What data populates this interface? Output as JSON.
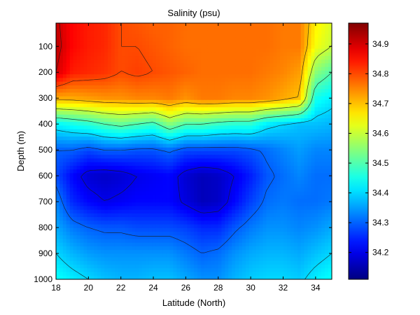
{
  "chart_data": {
    "type": "heatmap",
    "title": "Salinity (psu)",
    "xlabel": "Latitude (North)",
    "ylabel": "Depth (m)",
    "xlim": [
      18,
      35
    ],
    "ylim": [
      0,
      1000
    ],
    "x_ticks": [
      18,
      20,
      22,
      24,
      26,
      28,
      30,
      32,
      34
    ],
    "y_ticks": [
      100,
      200,
      300,
      400,
      500,
      600,
      700,
      800,
      900,
      1000
    ],
    "y_reversed": true,
    "colorbar": {
      "range": [
        34.11,
        34.97
      ],
      "ticks": [
        34.2,
        34.3,
        34.4,
        34.5,
        34.6,
        34.7,
        34.8,
        34.9
      ],
      "colormap": "jet"
    },
    "grid": false,
    "legend": "none",
    "contour_levels": [
      34.2,
      34.3,
      34.4,
      34.5,
      34.6,
      34.7,
      34.8,
      34.9
    ],
    "latitudes": [
      18,
      19,
      20,
      21,
      22,
      23,
      24,
      25,
      26,
      27,
      28,
      29,
      30,
      31,
      32,
      33,
      34,
      35
    ],
    "depths": [
      0,
      100,
      200,
      300,
      400,
      500,
      600,
      700,
      800,
      900,
      1000
    ],
    "values": [
      [
        34.91,
        34.86,
        34.84,
        34.83,
        34.8,
        34.79,
        34.78,
        34.78,
        34.77,
        34.77,
        34.77,
        34.77,
        34.77,
        34.77,
        34.76,
        34.76,
        34.66,
        34.62
      ],
      [
        34.92,
        34.86,
        34.84,
        34.83,
        34.8,
        34.8,
        34.79,
        34.78,
        34.77,
        34.77,
        34.77,
        34.77,
        34.77,
        34.77,
        34.76,
        34.76,
        34.64,
        34.6
      ],
      [
        34.9,
        34.84,
        34.83,
        34.82,
        34.8,
        34.81,
        34.8,
        34.79,
        34.78,
        34.77,
        34.77,
        34.77,
        34.77,
        34.76,
        34.75,
        34.73,
        34.55,
        34.5
      ],
      [
        34.72,
        34.72,
        34.73,
        34.74,
        34.74,
        34.75,
        34.75,
        34.76,
        34.74,
        34.76,
        34.76,
        34.75,
        34.75,
        34.74,
        34.72,
        34.7,
        34.45,
        34.42
      ],
      [
        34.43,
        34.45,
        34.47,
        34.5,
        34.52,
        34.5,
        34.48,
        34.55,
        34.5,
        34.5,
        34.48,
        34.47,
        34.47,
        34.42,
        34.4,
        34.38,
        34.38,
        34.37
      ],
      [
        34.3,
        34.3,
        34.28,
        34.3,
        34.3,
        34.29,
        34.29,
        34.31,
        34.28,
        34.28,
        34.28,
        34.28,
        34.29,
        34.31,
        34.33,
        34.35,
        34.33,
        34.33
      ],
      [
        34.28,
        34.22,
        34.18,
        34.17,
        34.18,
        34.2,
        34.21,
        34.22,
        34.18,
        34.16,
        34.17,
        34.2,
        34.24,
        34.29,
        34.31,
        34.33,
        34.31,
        34.31
      ],
      [
        34.33,
        34.25,
        34.22,
        34.2,
        34.21,
        34.22,
        34.22,
        34.22,
        34.19,
        34.16,
        34.17,
        34.22,
        34.27,
        34.31,
        34.32,
        34.31,
        34.31,
        34.32
      ],
      [
        34.36,
        34.32,
        34.3,
        34.29,
        34.29,
        34.28,
        34.28,
        34.28,
        34.27,
        34.25,
        34.25,
        34.29,
        34.32,
        34.34,
        34.34,
        34.33,
        34.34,
        34.36
      ],
      [
        34.4,
        34.37,
        34.35,
        34.34,
        34.34,
        34.34,
        34.34,
        34.34,
        34.32,
        34.3,
        34.31,
        34.34,
        34.36,
        34.37,
        34.37,
        34.36,
        34.38,
        34.4
      ],
      [
        34.44,
        34.42,
        34.4,
        34.38,
        34.37,
        34.37,
        34.38,
        34.38,
        34.36,
        34.34,
        34.34,
        34.37,
        34.39,
        34.4,
        34.4,
        34.39,
        34.42,
        34.44
      ]
    ]
  }
}
